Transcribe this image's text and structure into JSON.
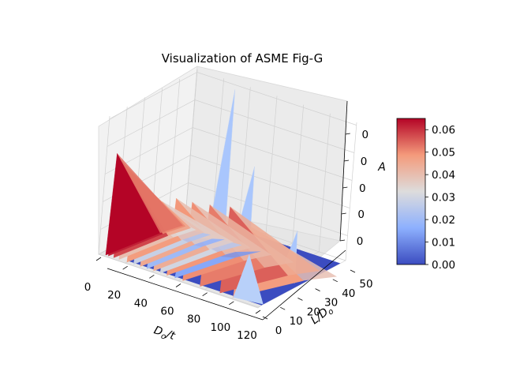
{
  "chart_data": {
    "type": "surface3d",
    "title": "Visualization of ASME Fig-G",
    "xlabel": "D_o/t",
    "ylabel": "L/D_o",
    "zlabel": "A",
    "xlim": [
      0,
      120
    ],
    "ylim": [
      0,
      50
    ],
    "x_ticks": [
      "0",
      "20",
      "40",
      "60",
      "80",
      "100",
      "120"
    ],
    "y_ticks": [
      "0",
      "10",
      "20",
      "30",
      "40",
      "50"
    ],
    "z_ticks": [
      "0",
      "0",
      "0",
      "0",
      "0"
    ],
    "colormap": "coolwarm",
    "colorbar": {
      "range": [
        0.0,
        0.065
      ],
      "ticks": [
        "0.00",
        "0.01",
        "0.02",
        "0.03",
        "0.04",
        "0.05",
        "0.06"
      ]
    },
    "peaks": [
      {
        "x": 4,
        "a": 0.065
      },
      {
        "x": 6,
        "a": 0.062
      },
      {
        "x": 10,
        "a": 0.058
      },
      {
        "x": 14,
        "a": 0.04
      },
      {
        "x": 20,
        "a": 0.048
      },
      {
        "x": 25,
        "a": 0.028
      },
      {
        "x": 30,
        "a": 0.045
      },
      {
        "x": 35,
        "a": 0.02
      },
      {
        "x": 40,
        "a": 0.044
      },
      {
        "x": 45,
        "a": 0.03
      },
      {
        "x": 50,
        "a": 0.049
      },
      {
        "x": 56,
        "a": 0.015
      },
      {
        "x": 62,
        "a": 0.05
      },
      {
        "x": 75,
        "a": 0.052
      },
      {
        "x": 90,
        "a": 0.055
      },
      {
        "x": 100,
        "a": 0.048
      }
    ],
    "blue_spikes": [
      {
        "x": 35,
        "y": 45,
        "a": 0.09
      },
      {
        "x": 60,
        "y": 40,
        "a": 0.05
      },
      {
        "x": 110,
        "y": 28,
        "a": 0.03
      }
    ]
  }
}
